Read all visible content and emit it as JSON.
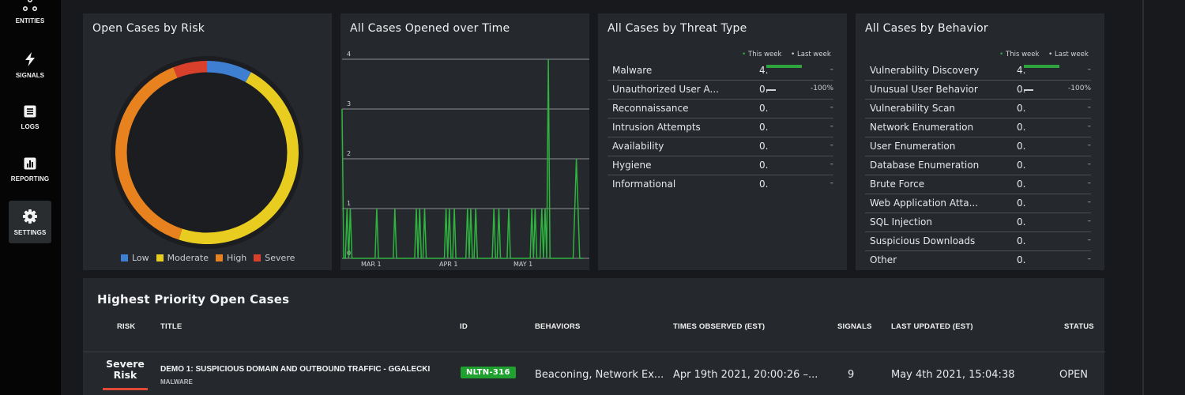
{
  "sidebar": {
    "items": [
      {
        "label": "ENTITIES",
        "icon": "entities-icon",
        "active": false
      },
      {
        "label": "SIGNALS",
        "icon": "lightning-icon",
        "active": false
      },
      {
        "label": "LOGS",
        "icon": "logs-icon",
        "active": false
      },
      {
        "label": "REPORTING",
        "icon": "bar-chart-icon",
        "active": false
      },
      {
        "label": "SETTINGS",
        "icon": "gear-icon",
        "active": true
      }
    ]
  },
  "risk_panel": {
    "title": "Open Cases by Risk",
    "legend": [
      {
        "label": "Low",
        "color": "#3f7fd1"
      },
      {
        "label": "Moderate",
        "color": "#e8cc1f"
      },
      {
        "label": "High",
        "color": "#e8821f"
      },
      {
        "label": "Severe",
        "color": "#d9402b"
      }
    ]
  },
  "time_panel": {
    "title": "All Cases Opened over Time",
    "y_ticks": [
      "4",
      "3",
      "2",
      "1",
      "0"
    ],
    "x_ticks": [
      "MAR 1",
      "APR 1",
      "MAY 1"
    ]
  },
  "threat_panel": {
    "title": "All Cases by Threat Type",
    "this_week": "This week",
    "last_week": "Last week",
    "rows": [
      {
        "label": "Malware",
        "value": "4.",
        "pct": "–"
      },
      {
        "label": "Unauthorized User A...",
        "value": "0.",
        "pct": "-100%"
      },
      {
        "label": "Reconnaissance",
        "value": "0.",
        "pct": "–"
      },
      {
        "label": "Intrusion Attempts",
        "value": "0.",
        "pct": "–"
      },
      {
        "label": "Availability",
        "value": "0.",
        "pct": "–"
      },
      {
        "label": "Hygiene",
        "value": "0.",
        "pct": "–"
      },
      {
        "label": "Informational",
        "value": "0.",
        "pct": "–"
      }
    ]
  },
  "behavior_panel": {
    "title": "All Cases by Behavior",
    "this_week": "This week",
    "last_week": "Last week",
    "rows": [
      {
        "label": "Vulnerability Discovery",
        "value": "4.",
        "pct": "–"
      },
      {
        "label": "Unusual User Behavior",
        "value": "0.",
        "pct": "-100%"
      },
      {
        "label": "Vulnerability Scan",
        "value": "0.",
        "pct": "–"
      },
      {
        "label": "Network Enumeration",
        "value": "0.",
        "pct": "–"
      },
      {
        "label": "User Enumeration",
        "value": "0.",
        "pct": "–"
      },
      {
        "label": "Database Enumeration",
        "value": "0.",
        "pct": "–"
      },
      {
        "label": "Brute Force",
        "value": "0.",
        "pct": "–"
      },
      {
        "label": "Web Application Atta...",
        "value": "0.",
        "pct": "–"
      },
      {
        "label": "SQL Injection",
        "value": "0.",
        "pct": "–"
      },
      {
        "label": "Suspicious Downloads",
        "value": "0.",
        "pct": "–"
      },
      {
        "label": "Other",
        "value": "0.",
        "pct": "–"
      }
    ]
  },
  "cases": {
    "title": "Highest Priority Open Cases",
    "columns": {
      "risk": "RISK",
      "title": "TITLE",
      "id": "ID",
      "behaviors": "BEHAVIORS",
      "times": "TIMES OBSERVED (EST)",
      "signals": "SIGNALS",
      "updated": "LAST UPDATED (EST)",
      "status": "STATUS"
    },
    "row": {
      "risk_line1": "Severe",
      "risk_line2": "Risk",
      "title": "DEMO 1: SUSPICIOUS DOMAIN AND OUTBOUND TRAFFIC - GGALECKI",
      "subtitle": "MALWARE",
      "id": "NLTN-316",
      "behaviors": "Beaconing, Network Ex...",
      "times": "Apr 19th 2021, 20:00:26 –...",
      "signals": "9",
      "updated": "May 4th 2021, 15:04:38",
      "status": "OPEN"
    }
  },
  "chart_data": [
    {
      "type": "pie",
      "title": "Open Cases by Risk",
      "categories": [
        "Low",
        "Moderate",
        "High",
        "Severe"
      ],
      "values": [
        8,
        47,
        39,
        6
      ],
      "colors": [
        "#3f7fd1",
        "#e8cc1f",
        "#e8821f",
        "#d9402b"
      ]
    },
    {
      "type": "line",
      "title": "All Cases Opened over Time",
      "ylim": [
        0,
        4
      ],
      "x_ticks": [
        "MAR 1",
        "APR 1",
        "MAY 1"
      ],
      "series": [
        {
          "values": [
            3,
            0,
            0,
            1,
            0,
            1,
            0,
            0,
            0,
            0,
            0,
            0,
            0,
            0,
            0,
            0,
            0,
            0,
            0,
            0,
            0,
            1,
            0,
            0,
            0,
            0,
            0,
            0,
            0,
            0,
            0,
            0,
            1,
            0,
            0,
            0,
            0,
            0,
            0,
            0,
            0,
            0,
            0,
            0,
            0,
            1,
            0,
            1,
            0,
            0,
            1,
            0,
            0,
            0,
            0,
            0,
            0,
            0,
            0,
            0,
            0,
            0,
            0,
            1,
            0,
            1,
            0,
            0,
            1,
            0,
            0,
            0,
            0,
            0,
            0,
            0,
            1,
            0,
            1,
            0,
            0,
            1,
            0,
            0,
            0,
            0,
            0,
            0,
            0,
            0,
            0,
            0,
            1,
            0,
            0,
            1,
            0,
            0,
            0,
            0,
            0,
            1,
            0,
            0,
            0,
            0,
            0,
            0,
            0,
            0,
            0,
            0,
            0,
            0,
            0,
            1,
            0,
            1,
            0,
            0,
            0,
            1,
            0,
            1,
            0,
            4,
            0,
            0,
            0,
            0,
            0,
            0,
            0,
            0,
            0,
            0,
            0,
            0,
            0,
            0,
            0,
            1,
            2,
            1,
            0,
            0,
            0
          ]
        }
      ]
    }
  ]
}
